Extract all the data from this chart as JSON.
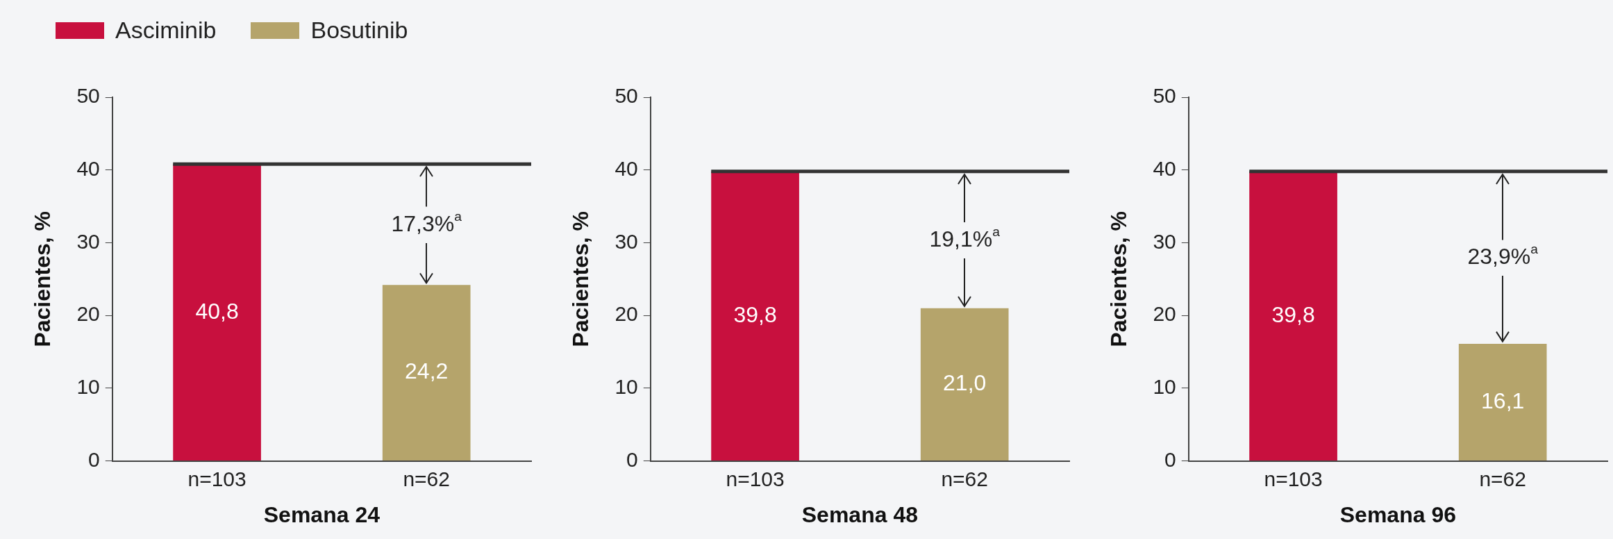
{
  "chart_data": [
    {
      "type": "bar",
      "xlabel": "Semana 24",
      "ylabel": "Pacientes, %",
      "categories": [
        "n=103",
        "n=62"
      ],
      "legend": "top left",
      "ylim": [
        0,
        50
      ],
      "yticks": [
        0,
        10,
        20,
        30,
        40,
        50
      ],
      "series": [
        {
          "name": "Asciminib",
          "color": "#c8103e",
          "values": [
            40.8,
            null
          ],
          "value_labels": [
            "40,8",
            null
          ]
        },
        {
          "name": "Bosutinib",
          "color": "#b5a46b",
          "values": [
            null,
            24.2
          ],
          "value_labels": [
            null,
            "24,2"
          ]
        }
      ],
      "ref_lines": [
        {
          "axis": "y",
          "value": 40.8,
          "color": "#333333"
        }
      ],
      "annotations": [
        {
          "text": "17,3%$^{a}$",
          "x": "n=62",
          "y": 24.2
        }
      ]
    },
    {
      "type": "bar",
      "xlabel": "Semana 48",
      "ylabel": "Pacientes, %",
      "categories": [
        "n=103",
        "n=62"
      ],
      "ylim": [
        0,
        50
      ],
      "yticks": [
        0,
        10,
        20,
        30,
        40,
        50
      ],
      "series": [
        {
          "color": "#c8103e",
          "values": [
            39.8,
            null
          ],
          "value_labels": [
            "39,8",
            null
          ]
        },
        {
          "color": "#b5a46b",
          "values": [
            null,
            21.0
          ],
          "value_labels": [
            null,
            "21,0"
          ]
        }
      ],
      "ref_lines": [
        {
          "axis": "y",
          "value": 39.8,
          "color": "#333333"
        }
      ],
      "annotations": [
        {
          "text": "19,1%$^{a}$",
          "x": "n=62",
          "y": 21.0
        }
      ]
    },
    {
      "type": "bar",
      "xlabel": "Semana 96",
      "ylabel": "Pacientes, %",
      "categories": [
        "n=103",
        "n=62"
      ],
      "ylim": [
        0,
        50
      ],
      "yticks": [
        0,
        10,
        20,
        30,
        40,
        50
      ],
      "series": [
        {
          "color": "#c8103e",
          "values": [
            39.8,
            null
          ],
          "value_labels": [
            "39,8",
            null
          ]
        },
        {
          "color": "#b5a46b",
          "values": [
            null,
            16.1
          ],
          "value_labels": [
            null,
            "16,1"
          ]
        }
      ],
      "ref_lines": [
        {
          "axis": "y",
          "value": 39.8,
          "color": "#333333"
        }
      ],
      "annotations": [
        {
          "text": "23,9%$^{a}$",
          "x": "n=62",
          "y": 16.1
        }
      ]
    }
  ]
}
